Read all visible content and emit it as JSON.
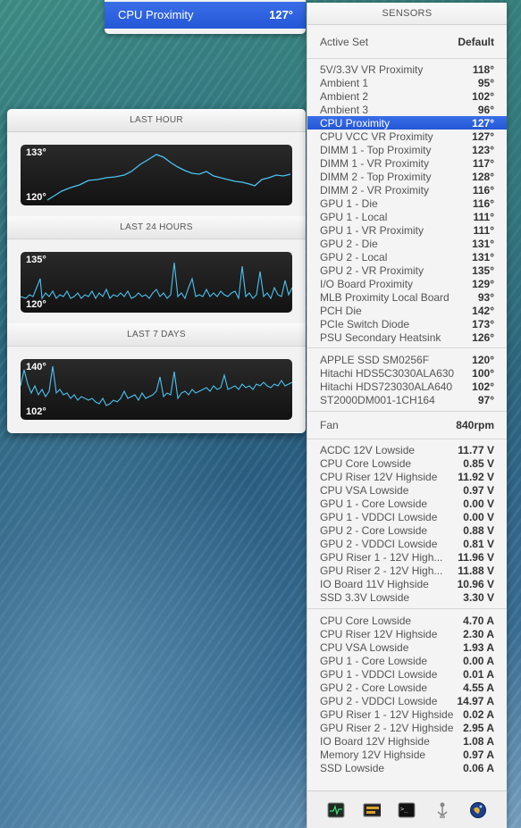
{
  "top_popup": {
    "label": "CPU Proximity",
    "value": "127°"
  },
  "panel": {
    "title": "SENSORS",
    "active_set": {
      "label": "Active Set",
      "value": "Default"
    },
    "temps": [
      {
        "label": "5V/3.3V VR Proximity",
        "value": "118°"
      },
      {
        "label": "Ambient 1",
        "value": "95°"
      },
      {
        "label": "Ambient 2",
        "value": "102°"
      },
      {
        "label": "Ambient 3",
        "value": "96°"
      },
      {
        "label": "CPU Proximity",
        "value": "127°",
        "selected": true
      },
      {
        "label": "CPU VCC VR Proximity",
        "value": "127°"
      },
      {
        "label": "DIMM 1 - Top Proximity",
        "value": "123°"
      },
      {
        "label": "DIMM 1 - VR Proximity",
        "value": "117°"
      },
      {
        "label": "DIMM 2 - Top Proximity",
        "value": "128°"
      },
      {
        "label": "DIMM 2 - VR Proximity",
        "value": "116°"
      },
      {
        "label": "GPU 1 - Die",
        "value": "116°"
      },
      {
        "label": "GPU 1 - Local",
        "value": "111°"
      },
      {
        "label": "GPU 1 - VR Proximity",
        "value": "111°"
      },
      {
        "label": "GPU 2 - Die",
        "value": "131°"
      },
      {
        "label": "GPU 2 - Local",
        "value": "131°"
      },
      {
        "label": "GPU 2 - VR Proximity",
        "value": "135°"
      },
      {
        "label": "I/O Board Proximity",
        "value": "129°"
      },
      {
        "label": "MLB Proximity Local Board",
        "value": "93°"
      },
      {
        "label": "PCH Die",
        "value": "142°"
      },
      {
        "label": "PCIe Switch Diode",
        "value": "173°"
      },
      {
        "label": "PSU Secondary Heatsink",
        "value": "126°"
      }
    ],
    "drives": [
      {
        "label": "APPLE SSD SM0256F",
        "value": "120°"
      },
      {
        "label": "Hitachi HDS5C3030ALA630",
        "value": "100°"
      },
      {
        "label": "Hitachi HDS723030ALA640",
        "value": "102°"
      },
      {
        "label": "ST2000DM001-1CH164",
        "value": "97°"
      }
    ],
    "fan": {
      "label": "Fan",
      "value": "840rpm"
    },
    "voltages": [
      {
        "label": "ACDC 12V Lowside",
        "value": "11.77 V"
      },
      {
        "label": "CPU Core Lowside",
        "value": "0.85 V"
      },
      {
        "label": "CPU Riser 12V Highside",
        "value": "11.92 V"
      },
      {
        "label": "CPU VSA Lowside",
        "value": "0.97 V"
      },
      {
        "label": "GPU 1 - Core Lowside",
        "value": "0.00 V"
      },
      {
        "label": "GPU 1 - VDDCI Lowside",
        "value": "0.00 V"
      },
      {
        "label": "GPU 2 - Core Lowside",
        "value": "0.88 V"
      },
      {
        "label": "GPU 2 - VDDCI Lowside",
        "value": "0.81 V"
      },
      {
        "label": "GPU Riser 1 - 12V High...",
        "value": "11.96 V"
      },
      {
        "label": "GPU Riser 2 - 12V High...",
        "value": "11.88 V"
      },
      {
        "label": "IO Board 11V Highside",
        "value": "10.96 V"
      },
      {
        "label": "SSD 3.3V Lowside",
        "value": "3.30 V"
      }
    ],
    "currents": [
      {
        "label": "CPU Core Lowside",
        "value": "4.70 A"
      },
      {
        "label": "CPU Riser 12V Highside",
        "value": "2.30 A"
      },
      {
        "label": "CPU VSA Lowside",
        "value": "1.93 A"
      },
      {
        "label": "GPU 1 - Core Lowside",
        "value": "0.00 A"
      },
      {
        "label": "GPU 1 - VDDCI Lowside",
        "value": "0.01 A"
      },
      {
        "label": "GPU 2 - Core Lowside",
        "value": "4.55 A"
      },
      {
        "label": "GPU 2 - VDDCI Lowside",
        "value": "14.97 A"
      },
      {
        "label": "GPU Riser 1 - 12V Highside",
        "value": "0.02 A"
      },
      {
        "label": "GPU Riser 2 - 12V Highside",
        "value": "2.95 A"
      },
      {
        "label": "IO Board 12V Highside",
        "value": "1.08 A"
      },
      {
        "label": "Memory 12V Highside",
        "value": "0.97 A"
      },
      {
        "label": "SSD Lowside",
        "value": "0.06 A"
      }
    ],
    "footer_icons": [
      "activity-monitor-icon",
      "istat-display-icon",
      "terminal-icon",
      "usb-icon",
      "network-globe-icon"
    ]
  },
  "history": {
    "line_color": "#4cc3f0",
    "sections": [
      {
        "title": "LAST HOUR",
        "max_label": "133°",
        "min_label": "120°"
      },
      {
        "title": "LAST 24 HOURS",
        "max_label": "135°",
        "min_label": "120°"
      },
      {
        "title": "LAST 7 DAYS",
        "max_label": "140°",
        "min_label": "102°"
      }
    ]
  }
}
